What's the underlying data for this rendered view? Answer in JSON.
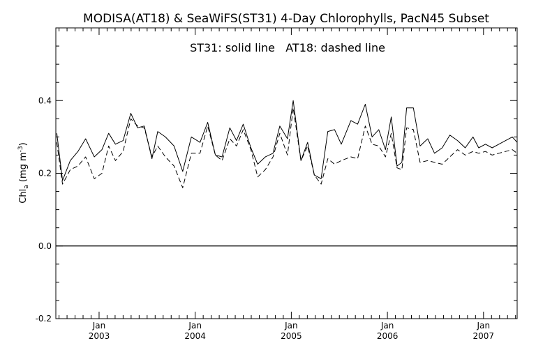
{
  "chart_data": {
    "type": "line",
    "title": "MODISA(AT18) & SeaWiFS(ST31) 4-Day Chlorophylls, PacN45 Subset",
    "annotation": "ST31: solid line   AT18: dashed line",
    "ylabel": "Chl",
    "ylabel_sub": "a",
    "ylabel_unit_open": " (mg m",
    "ylabel_unit_sup": "-3",
    "ylabel_unit_close": ")",
    "xlim": [
      2002.55,
      2007.35
    ],
    "ylim": [
      -0.2,
      0.6
    ],
    "y_ticks": [
      -0.2,
      0.0,
      0.2,
      0.4
    ],
    "y_tick_labels": [
      "-0.2",
      "0.0",
      "0.2",
      "0.4"
    ],
    "x_major_ticks": [
      2003,
      2004,
      2005,
      2006,
      2007
    ],
    "x_month_labels": [
      "Jan",
      "Jan",
      "Jan",
      "Jan",
      "Jan"
    ],
    "x_year_labels": [
      "2003",
      "2004",
      "2005",
      "2006",
      "2007"
    ],
    "zero_line": 0.0,
    "grid": false,
    "legend": "none",
    "series": [
      {
        "style": "solid",
        "x": [
          2002.56,
          2002.62,
          2002.7,
          2002.78,
          2002.86,
          2002.95,
          2003.03,
          2003.1,
          2003.17,
          2003.25,
          2003.33,
          2003.4,
          2003.47,
          2003.55,
          2003.61,
          2003.69,
          2003.78,
          2003.87,
          2003.96,
          2004.05,
          2004.13,
          2004.21,
          2004.28,
          2004.36,
          2004.43,
          2004.5,
          2004.58,
          2004.65,
          2004.73,
          2004.81,
          2004.88,
          2004.96,
          2005.02,
          2005.1,
          2005.17,
          2005.24,
          2005.31,
          2005.38,
          2005.45,
          2005.52,
          2005.62,
          2005.69,
          2005.77,
          2005.84,
          2005.91,
          2005.98,
          2006.04,
          2006.1,
          2006.15,
          2006.2,
          2006.27,
          2006.34,
          2006.42,
          2006.49,
          2006.57,
          2006.65,
          2006.73,
          2006.81,
          2006.89,
          2006.95,
          2007.02,
          2007.09,
          2007.16,
          2007.23,
          2007.3,
          2007.35
        ],
        "values": [
          0.31,
          0.18,
          0.235,
          0.26,
          0.295,
          0.245,
          0.265,
          0.31,
          0.28,
          0.29,
          0.365,
          0.325,
          0.33,
          0.24,
          0.315,
          0.3,
          0.275,
          0.205,
          0.3,
          0.285,
          0.34,
          0.25,
          0.245,
          0.325,
          0.29,
          0.335,
          0.27,
          0.225,
          0.245,
          0.255,
          0.33,
          0.295,
          0.4,
          0.235,
          0.285,
          0.195,
          0.185,
          0.315,
          0.32,
          0.28,
          0.345,
          0.335,
          0.39,
          0.3,
          0.32,
          0.265,
          0.355,
          0.22,
          0.23,
          0.38,
          0.38,
          0.275,
          0.295,
          0.255,
          0.27,
          0.305,
          0.29,
          0.27,
          0.3,
          0.27,
          0.28,
          0.27,
          0.28,
          0.29,
          0.3,
          0.285
        ]
      },
      {
        "style": "dashed",
        "x": [
          2002.56,
          2002.62,
          2002.7,
          2002.78,
          2002.86,
          2002.95,
          2003.03,
          2003.1,
          2003.17,
          2003.25,
          2003.33,
          2003.4,
          2003.47,
          2003.55,
          2003.61,
          2003.69,
          2003.78,
          2003.87,
          2003.96,
          2004.05,
          2004.13,
          2004.21,
          2004.28,
          2004.36,
          2004.43,
          2004.5,
          2004.58,
          2004.65,
          2004.73,
          2004.81,
          2004.88,
          2004.96,
          2005.02,
          2005.1,
          2005.17,
          2005.24,
          2005.31,
          2005.38,
          2005.45,
          2005.52,
          2005.62,
          2005.69,
          2005.77,
          2005.84,
          2005.91,
          2005.98,
          2006.04,
          2006.1,
          2006.15,
          2006.2,
          2006.27,
          2006.34,
          2006.42,
          2006.49,
          2006.57,
          2006.65,
          2006.73,
          2006.81,
          2006.89,
          2006.95,
          2007.02,
          2007.09,
          2007.16,
          2007.23,
          2007.3,
          2007.35
        ],
        "values": [
          0.285,
          0.17,
          0.21,
          0.22,
          0.245,
          0.185,
          0.2,
          0.275,
          0.235,
          0.26,
          0.35,
          0.33,
          0.325,
          0.245,
          0.275,
          0.245,
          0.22,
          0.16,
          0.255,
          0.255,
          0.33,
          0.25,
          0.235,
          0.295,
          0.275,
          0.32,
          0.265,
          0.19,
          0.21,
          0.245,
          0.31,
          0.25,
          0.38,
          0.235,
          0.275,
          0.195,
          0.17,
          0.24,
          0.225,
          0.235,
          0.245,
          0.24,
          0.33,
          0.28,
          0.275,
          0.245,
          0.31,
          0.215,
          0.21,
          0.325,
          0.32,
          0.23,
          0.235,
          0.23,
          0.225,
          0.245,
          0.265,
          0.25,
          0.26,
          0.255,
          0.26,
          0.25,
          0.255,
          0.26,
          0.265,
          0.255
        ]
      }
    ]
  }
}
